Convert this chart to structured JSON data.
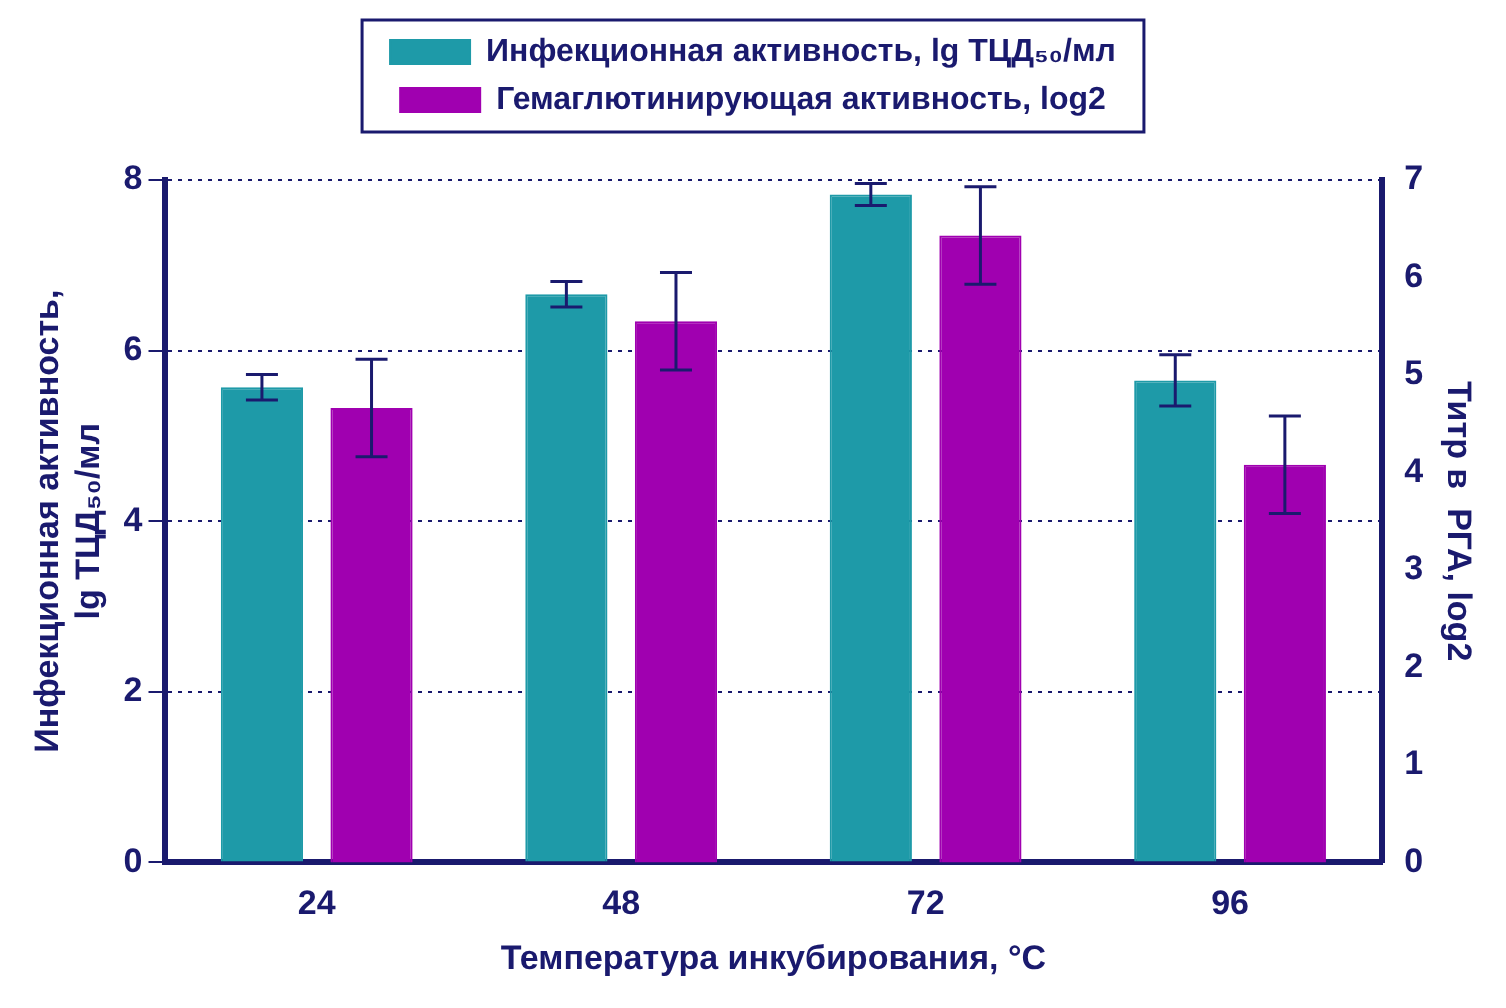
{
  "chart_data": {
    "type": "bar",
    "categories": [
      "24",
      "48",
      "72",
      "96"
    ],
    "xlabel": "Температура инкубирования, °C",
    "ylabel": "Инфекционная активность,\nlg ТЦД₅₀/мл",
    "y2label": "Титр в  РГА, log2",
    "series": [
      {
        "name": "Инфекционная активность, lg ТЦД₅₀/мл",
        "color": "#1e9aa8",
        "values": [
          5.57,
          6.66,
          7.83,
          5.65
        ],
        "errors": [
          0.15,
          0.15,
          0.13,
          0.3
        ]
      },
      {
        "name": "Гемаглютинирующая активность, log2",
        "color": "#a000b0",
        "axis": "y2",
        "values": [
          4.66,
          5.55,
          6.43,
          4.08
        ],
        "errors": [
          0.5,
          0.5,
          0.5,
          0.5
        ]
      }
    ],
    "ylim": [
      0,
      8
    ],
    "yticks": [
      0,
      2,
      4,
      6,
      8
    ],
    "y2lim": [
      0,
      7
    ],
    "y2ticks": [
      0,
      1,
      2,
      3,
      4,
      5,
      6,
      7
    ],
    "grid": "y",
    "legend": "top"
  }
}
